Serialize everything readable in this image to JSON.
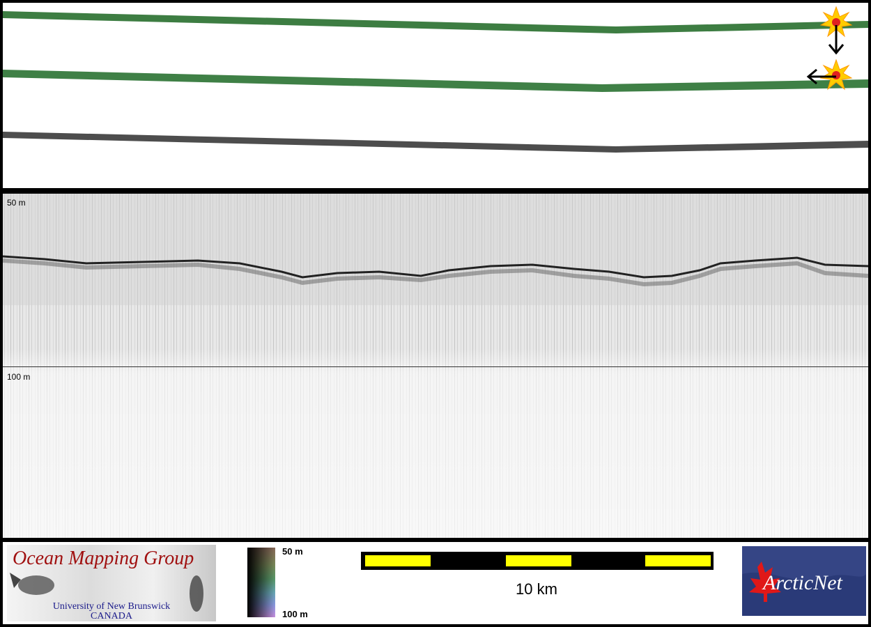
{
  "profile": {
    "depth_top_label": "50 m",
    "depth_mid_label": "100 m"
  },
  "footer": {
    "logo_ocean": {
      "title": "Ocean Mapping Group",
      "line1": "University of New Brunswick",
      "line2": "CANADA"
    },
    "colorbar": {
      "top_label": "50 m",
      "bottom_label": "100 m"
    },
    "scale_bar": {
      "label": "10 km",
      "colors": [
        "#ffff00",
        "#000000",
        "#ffff00",
        "#000000",
        "#ffff00"
      ]
    },
    "logo_arctic": {
      "text": "ArcticNet"
    }
  },
  "colors": {
    "swath_green": "#3a7a40",
    "swath_gray": "#4a4a4a",
    "marker_star": "#ffcc00",
    "marker_core": "#e02020"
  }
}
